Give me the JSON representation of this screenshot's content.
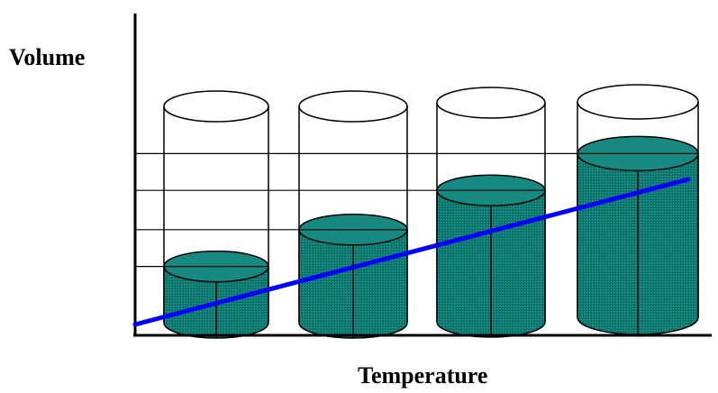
{
  "labels": {
    "y_axis": "Volume",
    "x_axis": "Temperature"
  },
  "cylinders": [
    {
      "liquid_fraction": 0.26
    },
    {
      "liquid_fraction": 0.43
    },
    {
      "liquid_fraction": 0.6
    },
    {
      "liquid_fraction": 0.76
    }
  ],
  "colors": {
    "liquid_body": "#0e7a72",
    "liquid_top": "#168a80",
    "trend_line": "#0000ff",
    "outline": "#000000",
    "background": "#ffffff"
  }
}
